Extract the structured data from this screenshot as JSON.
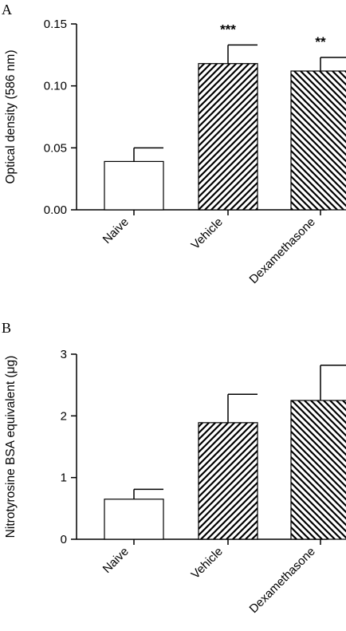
{
  "chart_data": [
    {
      "type": "bar",
      "panel": "A",
      "categories": [
        "Naive",
        "Vehicle",
        "Dexamethasone"
      ],
      "values": [
        0.039,
        0.118,
        0.112
      ],
      "errors": [
        0.011,
        0.015,
        0.011
      ],
      "fills": [
        "empty",
        "hatch-up",
        "hatch-down"
      ],
      "annotations": [
        "",
        "***",
        "**"
      ],
      "ylabel": "Optical density (586 nm)",
      "ylim": [
        0,
        0.15
      ],
      "yticks": [
        "0.00",
        "0.05",
        "0.10",
        "0.15"
      ],
      "ytick_values": [
        0,
        0.05,
        0.1,
        0.15
      ]
    },
    {
      "type": "bar",
      "panel": "B",
      "categories": [
        "Naive",
        "Vehicle",
        "Dexamethasone"
      ],
      "values": [
        0.65,
        1.89,
        2.25
      ],
      "errors": [
        0.16,
        0.46,
        0.57
      ],
      "fills": [
        "empty",
        "hatch-up",
        "hatch-down"
      ],
      "annotations": [
        "",
        "",
        ""
      ],
      "ylabel": "Nitrotyrosine BSA equivalent (μg)",
      "ylim": [
        0,
        3
      ],
      "yticks": [
        "0",
        "1",
        "2",
        "3"
      ],
      "ytick_values": [
        0,
        1,
        2,
        3
      ]
    }
  ]
}
